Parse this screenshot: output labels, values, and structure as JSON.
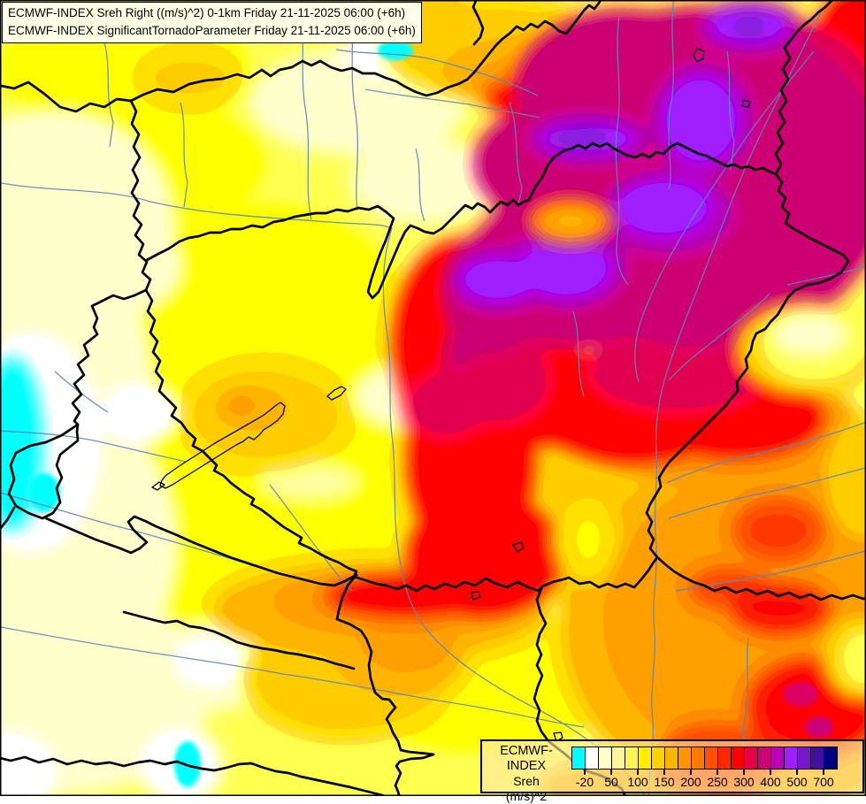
{
  "header": {
    "line1": "ECMWF-INDEX Sreh Right ((m/s)^2) 0-1km Friday 21-11-2025 06:00 (+6h)",
    "line2": "ECMWF-INDEX SignificantTornadoParameter Friday 21-11-2025 06:00 (+6h)"
  },
  "legend": {
    "product": "ECMWF-INDEX",
    "parameter": "Sreh",
    "units": "(m/s)^2",
    "palette": [
      "#00FFFF",
      "#FFFFFF",
      "#FFFFC8",
      "#FFF89B",
      "#FFF450",
      "#FFEC00",
      "#FFD200",
      "#FFB400",
      "#FF9600",
      "#FF7800",
      "#FF5000",
      "#FF2800",
      "#FF0000",
      "#E60048",
      "#CD0074",
      "#B800B8",
      "#A01EFF",
      "#7818CD",
      "#4010A0",
      "#000082"
    ],
    "tick_labels": [
      "-20",
      "50",
      "100",
      "150",
      "200",
      "250",
      "300",
      "400",
      "500",
      "700"
    ],
    "tick_after_swatch": [
      1,
      3,
      5,
      7,
      9,
      11,
      13,
      15,
      17,
      19
    ]
  },
  "map": {
    "border_color": "#000000",
    "river_color": "#5E87B8",
    "frame_color": "#000000"
  }
}
